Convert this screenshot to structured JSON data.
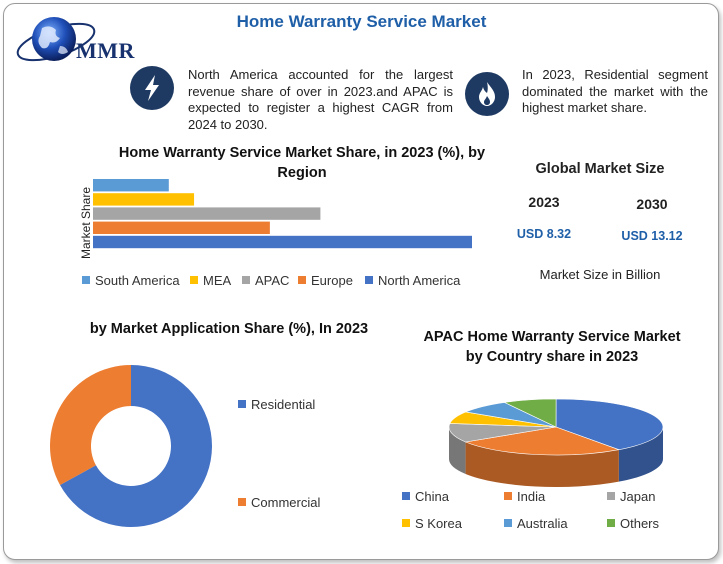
{
  "header": {
    "title": "Home Warranty Service Market",
    "logo_text": "MMR",
    "note_left": "North America accounted for the largest revenue share of over in 2023.and APAC is expected to register a highest CAGR from 2024 to 2030.",
    "note_right": "In 2023, Residential segment dominated the market with the highest market share.",
    "icon_left": "lightning-icon",
    "icon_right": "flame-icon"
  },
  "colors": {
    "blue": "#4472c4",
    "orange": "#ed7d31",
    "gray": "#a5a5a5",
    "yellow": "#ffc000",
    "light_blue": "#5b9bd5",
    "green": "#70ad47",
    "title_blue": "#1f5fa8",
    "badge_navy": "#1e3a63"
  },
  "global_market": {
    "title": "Global Market Size",
    "years": [
      "2023",
      "2030"
    ],
    "values": [
      "USD 8.32",
      "USD 13.12"
    ],
    "unit": "Market Size in Billion"
  },
  "chart_data": [
    {
      "type": "bar",
      "orientation": "horizontal",
      "title": "Home Warranty Service Market Share, in 2023 (%), by Region",
      "ylabel": "Market Share",
      "categories": [
        "South America",
        "MEA",
        "APAC",
        "Europe",
        "North America"
      ],
      "values": [
        6,
        8,
        18,
        14,
        30
      ],
      "colors": [
        "#5b9bd5",
        "#ffc000",
        "#a5a5a5",
        "#ed7d31",
        "#4472c4"
      ],
      "legend": "bottom",
      "grid": false
    },
    {
      "type": "pie",
      "style": "donut",
      "title": "by Market Application Share (%), In 2023",
      "categories": [
        "Residential",
        "Commercial"
      ],
      "values": [
        67,
        33
      ],
      "colors": [
        "#4472c4",
        "#ed7d31"
      ],
      "legend": "right"
    },
    {
      "type": "pie",
      "style": "3d",
      "title": "APAC Home Warranty Service Market by Country share in 2023",
      "categories": [
        "China",
        "India",
        "Japan",
        "S Korea",
        "Australia",
        "Others"
      ],
      "values": [
        40,
        26,
        11,
        7,
        8,
        8
      ],
      "colors": [
        "#4472c4",
        "#ed7d31",
        "#a5a5a5",
        "#ffc000",
        "#5b9bd5",
        "#70ad47"
      ],
      "legend": "bottom"
    }
  ]
}
